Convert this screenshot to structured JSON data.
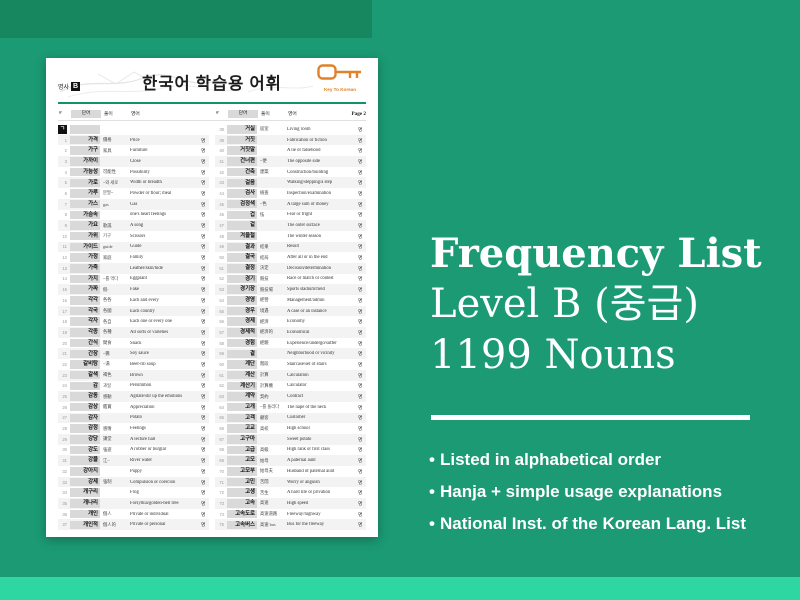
{
  "colors": {
    "background_main": "#1b9a73",
    "background_topleft_block": "#17875f",
    "background_bottom_strip": "#2ed7a1",
    "header_rule_green": "#10936b",
    "logo_orange": "#e1812a",
    "panel_text": "#ffffff"
  },
  "document": {
    "category_label": "명사",
    "category_level": "B",
    "title": "한국어 학습용 어휘",
    "logo_caption": "Key To Korean",
    "page_label": "Page 2",
    "columns": {
      "num": "#",
      "word": "단어",
      "gloss": "풀이",
      "english": "영어"
    },
    "pos_tag": "명",
    "section_letter": "ㄱ",
    "left_rows": [
      {
        "n": 1,
        "word": "가격",
        "note": "價格",
        "en": "Price"
      },
      {
        "n": 2,
        "word": "가구",
        "note": "家具",
        "en": "Furniture"
      },
      {
        "n": 3,
        "word": "가까이",
        "note": "",
        "en": "Close"
      },
      {
        "n": 4,
        "word": "가능성",
        "note": "可能性",
        "en": "Possibility"
      },
      {
        "n": 5,
        "word": "가로",
        "note": "~와 세로",
        "en": "Width or breadth"
      },
      {
        "n": 6,
        "word": "가루",
        "note": "분말~",
        "en": "Powder or flour; meal"
      },
      {
        "n": 7,
        "word": "가스",
        "note": "gas",
        "en": "Gas"
      },
      {
        "n": 8,
        "word": "가슴속",
        "note": "",
        "en": "one's heart feelings"
      },
      {
        "n": 9,
        "word": "가요",
        "note": "歌謠",
        "en": "A song"
      },
      {
        "n": 10,
        "word": "가위",
        "note": "기구",
        "en": "Scissors"
      },
      {
        "n": 11,
        "word": "가이드",
        "note": "guide",
        "en": "Guide"
      },
      {
        "n": 12,
        "word": "가정",
        "note": "家庭",
        "en": "Family"
      },
      {
        "n": 13,
        "word": "가죽",
        "note": "",
        "en": "Leather/skin/hide"
      },
      {
        "n": 14,
        "word": "가지",
        "note": "~를 먹다",
        "en": "Eggplant"
      },
      {
        "n": 15,
        "word": "가짜",
        "note": "假-",
        "en": "Fake"
      },
      {
        "n": 16,
        "word": "각각",
        "note": "各各",
        "en": "Each and every"
      },
      {
        "n": 17,
        "word": "각국",
        "note": "各國",
        "en": "Each country"
      },
      {
        "n": 18,
        "word": "각자",
        "note": "各自",
        "en": "Each one or every one"
      },
      {
        "n": 19,
        "word": "각종",
        "note": "各種",
        "en": "All sorts or varieties"
      },
      {
        "n": 20,
        "word": "간식",
        "note": "間食",
        "en": "Snack"
      },
      {
        "n": 21,
        "word": "간장",
        "note": "~醬",
        "en": "Soy sauce"
      },
      {
        "n": 22,
        "word": "갈비탕",
        "note": "~湯",
        "en": "Beef-rib soup"
      },
      {
        "n": 23,
        "word": "갈색",
        "note": "褐色",
        "en": "Brown"
      },
      {
        "n": 24,
        "word": "감",
        "note": "과일",
        "en": "Persimmon"
      },
      {
        "n": 25,
        "word": "감동",
        "note": "感動",
        "en": "Agitate/stir up the emotions"
      },
      {
        "n": 26,
        "word": "감상",
        "note": "鑑賞",
        "en": "Appreciation"
      },
      {
        "n": 27,
        "word": "감자",
        "note": "",
        "en": "Potato"
      },
      {
        "n": 28,
        "word": "감정",
        "note": "感情",
        "en": "Feelings"
      },
      {
        "n": 29,
        "word": "강당",
        "note": "講堂",
        "en": "A lecture hall"
      },
      {
        "n": 30,
        "word": "강도",
        "note": "強盜",
        "en": "A robber or burglar"
      },
      {
        "n": 31,
        "word": "강물",
        "note": "江~",
        "en": "River water"
      },
      {
        "n": 32,
        "word": "강아지",
        "note": "",
        "en": "Puppy"
      },
      {
        "n": 33,
        "word": "강제",
        "note": "強制",
        "en": "Compulsion or coercion"
      },
      {
        "n": 34,
        "word": "개구리",
        "note": "",
        "en": "Frog"
      },
      {
        "n": 35,
        "word": "개나리",
        "note": "",
        "en": "Forsythia/golden-bell tree"
      },
      {
        "n": 36,
        "word": "개인",
        "note": "個人",
        "en": "Private or individual"
      },
      {
        "n": 37,
        "word": "개인적",
        "note": "個人的",
        "en": "Private or personal"
      }
    ],
    "right_rows": [
      {
        "n": 38,
        "word": "거실",
        "note": "居室",
        "en": "Living room"
      },
      {
        "n": 39,
        "word": "거짓",
        "note": "",
        "en": "Fabrication or fiction"
      },
      {
        "n": 40,
        "word": "거짓말",
        "note": "",
        "en": "A lie or falsehood"
      },
      {
        "n": 41,
        "word": "건너편",
        "note": "~便",
        "en": "The opposite side"
      },
      {
        "n": 42,
        "word": "건축",
        "note": "建築",
        "en": "Construction/building"
      },
      {
        "n": 43,
        "word": "걸음",
        "note": "",
        "en": "Walking/stepping/a step"
      },
      {
        "n": 44,
        "word": "검사",
        "note": "檢査",
        "en": "Inspection/examination"
      },
      {
        "n": 45,
        "word": "검정색",
        "note": "~色",
        "en": "A large sum of money"
      },
      {
        "n": 46,
        "word": "겁",
        "note": "怯",
        "en": "Fear or fright"
      },
      {
        "n": 47,
        "word": "겉",
        "note": "",
        "en": "The outer surface"
      },
      {
        "n": 48,
        "word": "겨울철",
        "note": "",
        "en": "The winter season"
      },
      {
        "n": 49,
        "word": "결과",
        "note": "結果",
        "en": "Result"
      },
      {
        "n": 50,
        "word": "결국",
        "note": "結局",
        "en": "After all or in the end"
      },
      {
        "n": 51,
        "word": "결정",
        "note": "決定",
        "en": "Decision/determination"
      },
      {
        "n": 52,
        "word": "경기",
        "note": "競技",
        "en": "Race or match or contest"
      },
      {
        "n": 53,
        "word": "경기장",
        "note": "競技場",
        "en": "Sports stadium/field"
      },
      {
        "n": 54,
        "word": "경영",
        "note": "經營",
        "en": "Management/admin"
      },
      {
        "n": 55,
        "word": "경우",
        "note": "境遇",
        "en": "A case or an instance"
      },
      {
        "n": 56,
        "word": "경제",
        "note": "經濟",
        "en": "Economy"
      },
      {
        "n": 57,
        "word": "경제적",
        "note": "經濟的",
        "en": "Economical"
      },
      {
        "n": 58,
        "word": "경험",
        "note": "經驗",
        "en": "Experience/undergo/suffer"
      },
      {
        "n": 59,
        "word": "곁",
        "note": "",
        "en": "Neighborhood or vicinity"
      },
      {
        "n": 60,
        "word": "계단",
        "note": "階段",
        "en": "Staircase/set of stairs"
      },
      {
        "n": 61,
        "word": "계산",
        "note": "計算",
        "en": "Calculation"
      },
      {
        "n": 62,
        "word": "계산기",
        "note": "計算機",
        "en": "Calculator"
      },
      {
        "n": 63,
        "word": "계약",
        "note": "契約",
        "en": "Contract"
      },
      {
        "n": 64,
        "word": "고개",
        "note": "~를 돌리다",
        "en": "The nape of the neck"
      },
      {
        "n": 65,
        "word": "고객",
        "note": "顧客",
        "en": "Customer"
      },
      {
        "n": 66,
        "word": "고교",
        "note": "高校",
        "en": "High school"
      },
      {
        "n": 67,
        "word": "고구마",
        "note": "",
        "en": "Sweet potato"
      },
      {
        "n": 68,
        "word": "고급",
        "note": "高級",
        "en": "High rank or first class"
      },
      {
        "n": 69,
        "word": "고모",
        "note": "姑母",
        "en": "A paternal aunt"
      },
      {
        "n": 70,
        "word": "고모부",
        "note": "姑母夫",
        "en": "Husband of paternal aunt"
      },
      {
        "n": 71,
        "word": "고민",
        "note": "苦悶",
        "en": "Worry or anguish"
      },
      {
        "n": 72,
        "word": "고생",
        "note": "苦生",
        "en": "A hard life or privation"
      },
      {
        "n": 73,
        "word": "고속",
        "note": "高速",
        "en": "High speed"
      },
      {
        "n": 74,
        "word": "고속도로",
        "note": "高速道路",
        "en": "Freeway/highway"
      },
      {
        "n": 75,
        "word": "고속버스",
        "note": "高速 bus",
        "en": "Bus for the freeway"
      }
    ]
  },
  "panel": {
    "title_line1": "Frequency List",
    "title_line2": "Level B (중급)",
    "title_line3": "1199 Nouns",
    "bullets": [
      "Listed in alphabetical order",
      "Hanja + simple usage explanations",
      "National Inst. of the Korean Lang. List"
    ]
  }
}
